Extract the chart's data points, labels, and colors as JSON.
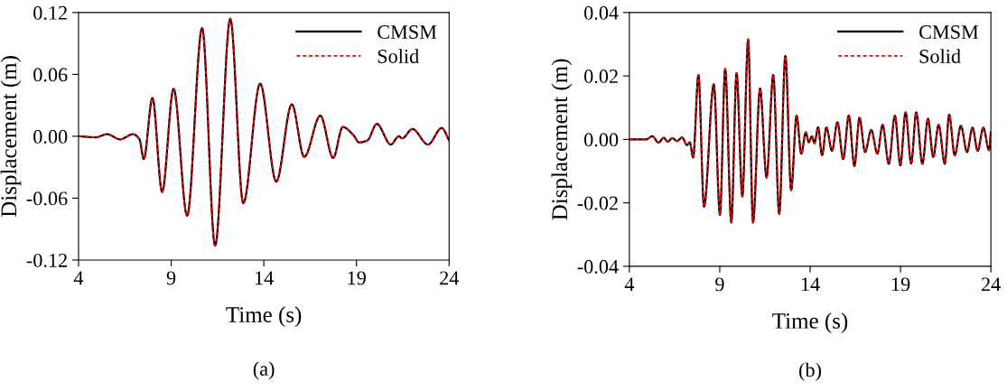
{
  "chart_data": [
    {
      "type": "line",
      "xlabel": "Time (s)",
      "ylabel": "Displacement (m)",
      "annotations": [
        "(a)"
      ],
      "legend": "top right",
      "grid": false,
      "xlim": [
        4,
        24
      ],
      "xticks": [
        4,
        9,
        14,
        19,
        24
      ],
      "ylim": [
        -0.12,
        0.12
      ],
      "yticks": [
        {
          "value": -0.12,
          "label": "-0.12"
        },
        {
          "value": -0.06,
          "label": "-0.06"
        },
        {
          "value": 0,
          "label": "0.00"
        },
        {
          "value": 0.06,
          "label": "0.06"
        },
        {
          "value": 0.12,
          "label": "0.12"
        }
      ],
      "x": [
        4,
        4.93,
        5.54,
        6.24,
        6.94,
        7.29,
        7.52,
        7.99,
        8.51,
        9.13,
        9.86,
        10.67,
        11.37,
        12.19,
        12.89,
        13.8,
        14.67,
        15.51,
        16.18,
        17.05,
        17.74,
        18.26,
        18.84,
        19.14,
        19.59,
        20.1,
        20.85,
        21.29,
        21.46,
        22.02,
        22.86,
        23.6,
        24
      ],
      "series": [
        {
          "name": "CMSM",
          "color": "#000000",
          "line_style": "solid",
          "values": [
            0,
            -0.001,
            0.002,
            -0.003,
            0.002,
            -0.003,
            -0.022,
            0.037,
            -0.054,
            0.046,
            -0.077,
            0.105,
            -0.106,
            0.114,
            -0.065,
            0.051,
            -0.044,
            0.031,
            -0.02,
            0.02,
            -0.021,
            0.009,
            0.001,
            -0.006,
            -0.004,
            0.012,
            -0.008,
            0.0,
            -0.002,
            0.007,
            -0.008,
            0.008,
            -0.004
          ]
        },
        {
          "name": "Solid",
          "color": "#ff0000",
          "line_style": "dashed",
          "values": [
            0,
            -0.001,
            0.002,
            -0.003,
            0.002,
            -0.003,
            -0.022,
            0.037,
            -0.054,
            0.046,
            -0.077,
            0.105,
            -0.106,
            0.114,
            -0.065,
            0.051,
            -0.044,
            0.031,
            -0.02,
            0.02,
            -0.021,
            0.009,
            0.001,
            -0.006,
            -0.004,
            0.012,
            -0.008,
            0.0,
            -0.002,
            0.007,
            -0.008,
            0.008,
            -0.004
          ]
        }
      ]
    },
    {
      "type": "line",
      "xlabel": "Time (s)",
      "ylabel": "Displacement (m)",
      "annotations": [
        "(b)"
      ],
      "legend": "top right",
      "grid": false,
      "xlim": [
        4,
        24
      ],
      "xticks": [
        4,
        9,
        14,
        19,
        24
      ],
      "ylim": [
        -0.04,
        0.04
      ],
      "yticks": [
        {
          "value": -0.04,
          "label": "-0.04"
        },
        {
          "value": -0.02,
          "label": "-0.02"
        },
        {
          "value": 0,
          "label": "0.00"
        },
        {
          "value": 0.02,
          "label": "0.02"
        },
        {
          "value": 0.04,
          "label": "0.04"
        }
      ],
      "x": [
        4,
        4.93,
        5.27,
        5.61,
        5.9,
        6.12,
        6.38,
        6.63,
        6.92,
        7.19,
        7.34,
        7.53,
        7.82,
        8.13,
        8.67,
        9.01,
        9.3,
        9.64,
        9.93,
        10.25,
        10.57,
        10.84,
        11.23,
        11.59,
        11.96,
        12.29,
        12.63,
        12.95,
        13.25,
        13.51,
        13.76,
        13.93,
        14.1,
        14.24,
        14.44,
        14.66,
        14.9,
        15.21,
        15.51,
        15.83,
        16.14,
        16.45,
        16.73,
        17.04,
        17.38,
        17.72,
        18.01,
        18.35,
        18.69,
        18.99,
        19.28,
        19.59,
        19.87,
        20.21,
        20.52,
        20.81,
        21.11,
        21.45,
        21.69,
        22.0,
        22.34,
        22.68,
        22.98,
        23.27,
        23.58,
        23.9,
        24
      ],
      "series": [
        {
          "name": "CMSM",
          "color": "#000000",
          "line_style": "solid",
          "values": [
            0,
            0,
            0.001,
            -0.001,
            0.0005,
            -0.0007,
            0.0004,
            -0.0005,
            0.0006,
            -0.0018,
            -0.0009,
            -0.0057,
            0.0203,
            -0.0212,
            0.0174,
            -0.0238,
            0.0222,
            -0.0262,
            0.0209,
            -0.018,
            0.0315,
            -0.0262,
            0.016,
            -0.012,
            0.0203,
            -0.0235,
            0.0263,
            -0.016,
            0.0075,
            -0.0045,
            0.0022,
            -0.0009,
            0.001,
            -0.0012,
            0.0038,
            -0.005,
            0.0038,
            -0.0036,
            0.0054,
            -0.0062,
            0.0075,
            -0.0084,
            0.0068,
            -0.004,
            0.003,
            -0.0045,
            0.0046,
            -0.0077,
            0.0075,
            -0.0082,
            0.0085,
            -0.0076,
            0.0085,
            -0.0077,
            0.0065,
            -0.0055,
            0.0046,
            -0.0077,
            0.0078,
            -0.005,
            0.0043,
            -0.004,
            0.0037,
            -0.0036,
            0.0037,
            -0.0034,
            0.0022
          ]
        },
        {
          "name": "Solid",
          "color": "#ff0000",
          "line_style": "dashed",
          "values": [
            0,
            0,
            0.001,
            -0.001,
            0.0005,
            -0.0007,
            0.0004,
            -0.0005,
            0.0006,
            -0.0018,
            -0.0009,
            -0.0057,
            0.0203,
            -0.0212,
            0.0174,
            -0.0238,
            0.0222,
            -0.0262,
            0.0209,
            -0.018,
            0.0315,
            -0.0262,
            0.016,
            -0.012,
            0.0203,
            -0.0235,
            0.0263,
            -0.016,
            0.0075,
            -0.0045,
            0.0022,
            -0.0009,
            0.001,
            -0.0012,
            0.0038,
            -0.005,
            0.0038,
            -0.0036,
            0.0054,
            -0.0062,
            0.0075,
            -0.0084,
            0.0068,
            -0.004,
            0.003,
            -0.0045,
            0.0046,
            -0.0077,
            0.0075,
            -0.0082,
            0.0085,
            -0.0076,
            0.0085,
            -0.0077,
            0.0065,
            -0.0055,
            0.0046,
            -0.0077,
            0.0078,
            -0.005,
            0.0043,
            -0.004,
            0.0037,
            -0.0036,
            0.0037,
            -0.0034,
            0.0022
          ]
        }
      ]
    }
  ]
}
